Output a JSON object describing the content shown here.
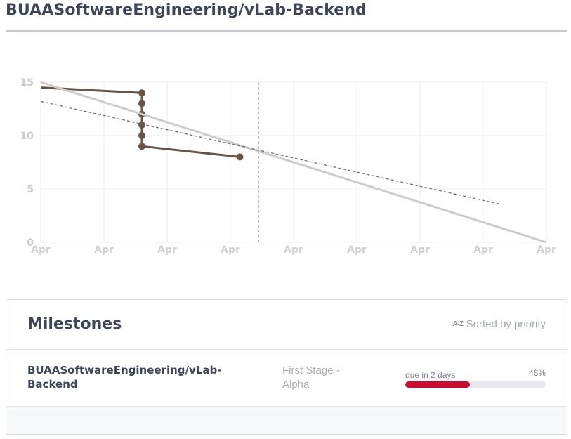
{
  "repo": {
    "title": "BUAASoftwareEngineering/vLab-Backend"
  },
  "chart_data": {
    "type": "line",
    "y_ticks": [
      "0",
      "5",
      "10",
      "15"
    ],
    "x_tick_labels": [
      "Apr",
      "Apr",
      "Apr",
      "Apr",
      "Apr",
      "Apr",
      "Apr",
      "Apr",
      "Apr"
    ],
    "ylim": [
      0,
      15
    ],
    "grid": true,
    "today_marker_x": 3.45,
    "series": [
      {
        "style": "solid-brown-with-markers",
        "color": "#6b5444",
        "points": [
          [
            0,
            14.5
          ],
          [
            1.6,
            14
          ],
          [
            1.6,
            13
          ],
          [
            1.6,
            12
          ],
          [
            1.6,
            11
          ],
          [
            1.6,
            10
          ],
          [
            1.6,
            9
          ],
          [
            3.15,
            8
          ]
        ],
        "markers": [
          [
            1.6,
            14
          ],
          [
            1.6,
            13
          ],
          [
            1.6,
            12
          ],
          [
            1.6,
            11
          ],
          [
            1.6,
            10
          ],
          [
            1.6,
            9
          ],
          [
            3.15,
            8
          ]
        ]
      },
      {
        "style": "solid-grey-ideal",
        "color": "#cccccc",
        "points": [
          [
            0,
            15
          ],
          [
            8,
            0
          ]
        ]
      },
      {
        "style": "dashed-projection",
        "color": "#666666",
        "points": [
          [
            0,
            13.2
          ],
          [
            7.25,
            3.6
          ]
        ]
      }
    ]
  },
  "milestones": {
    "title": "Milestones",
    "sort_icon": "A-Z",
    "sort_label": "Sorted by priority",
    "items": [
      {
        "name": "BUAASoftwareEngineering/vLab-Backend",
        "stage": "First Stage - Alpha",
        "due": "due in 2 days",
        "percent_label": "46%",
        "progress": 0.46,
        "bar_color": "#cf0a2c"
      }
    ]
  }
}
